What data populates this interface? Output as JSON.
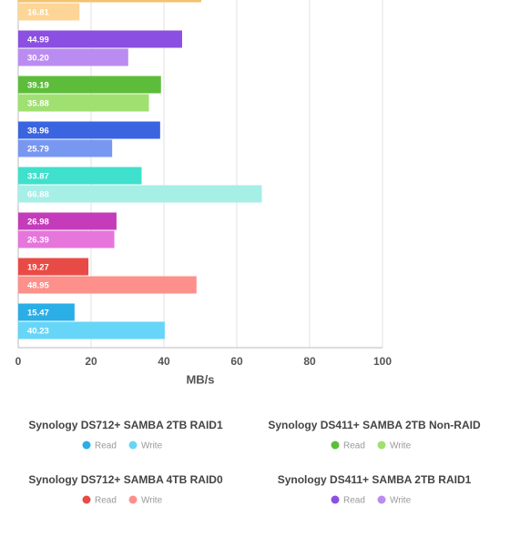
{
  "chart_data": {
    "type": "grouped-hbar",
    "x_label": "MB/s",
    "xlim": [
      0,
      100
    ],
    "xticks": [
      0,
      20,
      40,
      60,
      80,
      100
    ],
    "grid": true,
    "series_labels": [
      "Read",
      "Write"
    ],
    "series": [
      {
        "name": null,
        "colors": [
          "#f3c36f",
          "#fdd596"
        ],
        "values": [
          50.25,
          16.81
        ],
        "value_labels": [
          null,
          "16.81"
        ]
      },
      {
        "name": "Synology DS411+ SAMBA 2TB RAID1",
        "colors": [
          "#8b4fe1",
          "#ba8cf1"
        ],
        "values": [
          44.99,
          30.2
        ],
        "value_labels": [
          "44.99",
          "30.20"
        ]
      },
      {
        "name": "Synology DS411+ SAMBA 2TB Non-RAID",
        "colors": [
          "#5dbd3b",
          "#9fe071"
        ],
        "values": [
          39.19,
          35.88
        ],
        "value_labels": [
          "39.19",
          "35.88"
        ]
      },
      {
        "name": null,
        "colors": [
          "#3b64e0",
          "#7897f1"
        ],
        "values": [
          38.96,
          25.79
        ],
        "value_labels": [
          "38.96",
          "25.79"
        ]
      },
      {
        "name": null,
        "colors": [
          "#3fe0cc",
          "#a5efe7"
        ],
        "values": [
          33.87,
          66.88
        ],
        "value_labels": [
          "33.87",
          "66.88"
        ]
      },
      {
        "name": null,
        "colors": [
          "#c43cb9",
          "#e676dc"
        ],
        "values": [
          26.98,
          26.39
        ],
        "value_labels": [
          "26.98",
          "26.39"
        ]
      },
      {
        "name": "Synology DS712+ SAMBA 4TB RAID0",
        "colors": [
          "#e84b46",
          "#fd908b"
        ],
        "values": [
          19.27,
          48.95
        ],
        "value_labels": [
          "19.27",
          "48.95"
        ]
      },
      {
        "name": "Synology DS712+ SAMBA 2TB RAID1",
        "colors": [
          "#2baee6",
          "#67d5f7"
        ],
        "values": [
          15.47,
          40.23
        ],
        "value_labels": [
          "15.47",
          "40.23"
        ]
      }
    ]
  }
}
